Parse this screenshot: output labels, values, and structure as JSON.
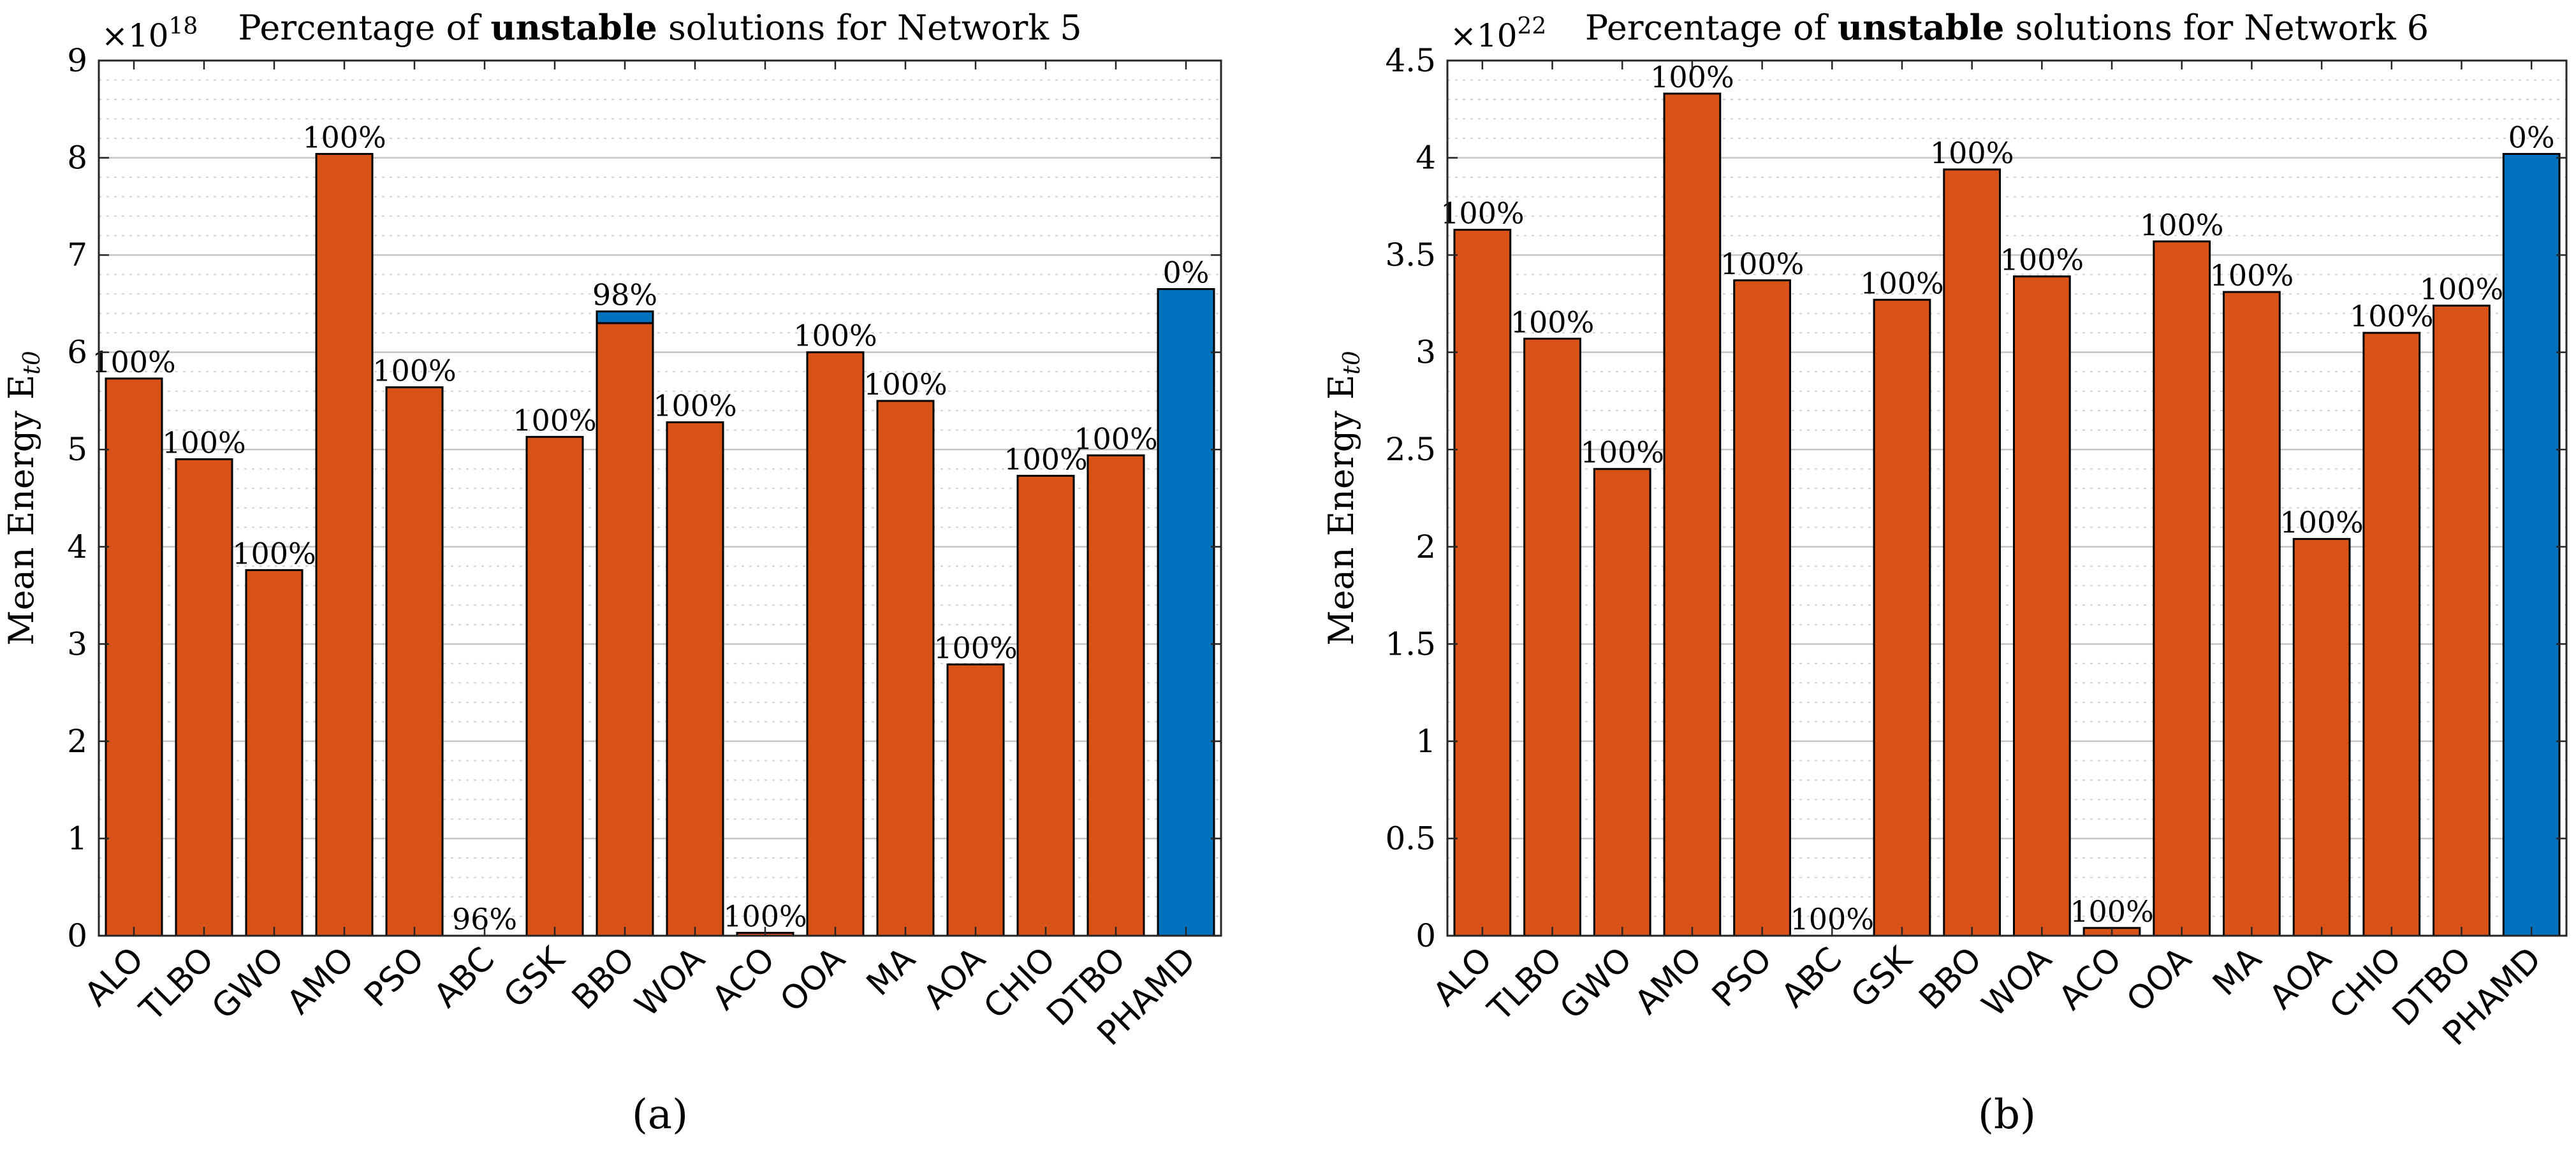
{
  "chart_data": [
    {
      "type": "bar",
      "panel_label": "(a)",
      "title_prefix": "Percentage of ",
      "title_bold": "unstable",
      "title_suffix": " solutions for Network 5",
      "ylabel": "Mean Energy E",
      "ylabel_sub": "t0",
      "y_exponent": "×10",
      "y_exponent_power": "18",
      "ylim": [
        0,
        9
      ],
      "yticks": [
        "0",
        "1",
        "2",
        "3",
        "4",
        "5",
        "6",
        "7",
        "8",
        "9"
      ],
      "categories": [
        "ALO",
        "TLBO",
        "GWO",
        "AMO",
        "PSO",
        "ABC",
        "GSK",
        "BBO",
        "WOA",
        "ACO",
        "OOA",
        "MA",
        "AOA",
        "CHIO",
        "DTBO",
        "PHAMD"
      ],
      "series": [
        {
          "name": "unstable",
          "color": "#d95319",
          "values": [
            5.73,
            4.9,
            3.76,
            8.04,
            5.64,
            0.0,
            5.13,
            6.3,
            5.28,
            0.03,
            6.0,
            5.5,
            2.79,
            4.73,
            4.94,
            0.0
          ]
        },
        {
          "name": "stable",
          "color": "#0072bd",
          "values": [
            0.0,
            0.0,
            0.0,
            0.0,
            0.0,
            0.0,
            0.0,
            0.12,
            0.0,
            0.0,
            0.0,
            0.0,
            0.0,
            0.0,
            0.0,
            6.65
          ]
        }
      ],
      "data_labels": [
        "100%",
        "100%",
        "100%",
        "100%",
        "100%",
        "96%",
        "100%",
        "98%",
        "100%",
        "100%",
        "100%",
        "100%",
        "100%",
        "100%",
        "100%",
        "0%"
      ]
    },
    {
      "type": "bar",
      "panel_label": "(b)",
      "title_prefix": "Percentage of ",
      "title_bold": "unstable",
      "title_suffix": " solutions for Network 6",
      "ylabel": "Mean Energy E",
      "ylabel_sub": "t0",
      "y_exponent": "×10",
      "y_exponent_power": "22",
      "ylim": [
        0,
        4.5
      ],
      "yticks": [
        "0",
        "0.5",
        "1",
        "1.5",
        "2",
        "2.5",
        "3",
        "3.5",
        "4",
        "4.5"
      ],
      "categories": [
        "ALO",
        "TLBO",
        "GWO",
        "AMO",
        "PSO",
        "ABC",
        "GSK",
        "BBO",
        "WOA",
        "ACO",
        "OOA",
        "MA",
        "AOA",
        "CHIO",
        "DTBO",
        "PHAMD"
      ],
      "series": [
        {
          "name": "unstable",
          "color": "#d95319",
          "values": [
            3.63,
            3.07,
            2.4,
            4.33,
            3.37,
            0.0,
            3.27,
            3.94,
            3.39,
            0.04,
            3.57,
            3.31,
            2.04,
            3.1,
            3.24,
            0.0
          ]
        },
        {
          "name": "stable",
          "color": "#0072bd",
          "values": [
            0.0,
            0.0,
            0.0,
            0.0,
            0.0,
            0.0,
            0.0,
            0.0,
            0.0,
            0.0,
            0.0,
            0.0,
            0.0,
            0.0,
            0.0,
            4.02
          ]
        }
      ],
      "data_labels": [
        "100%",
        "100%",
        "100%",
        "100%",
        "100%",
        "100%",
        "100%",
        "100%",
        "100%",
        "100%",
        "100%",
        "100%",
        "100%",
        "100%",
        "100%",
        "0%"
      ]
    }
  ]
}
